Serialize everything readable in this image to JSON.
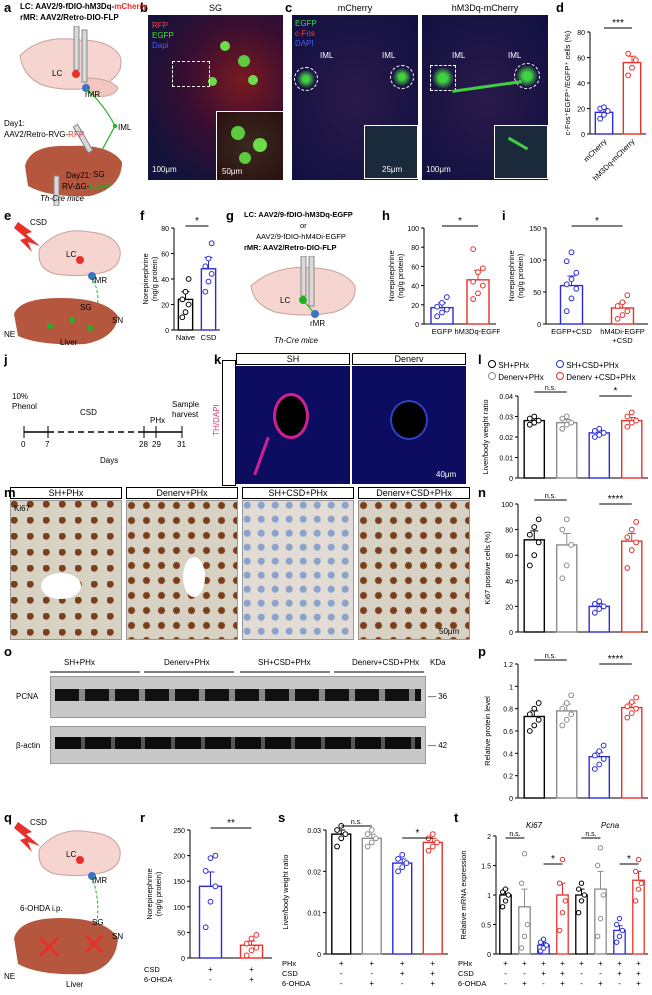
{
  "panel_letters": [
    "a",
    "b",
    "c",
    "d",
    "e",
    "f",
    "g",
    "h",
    "i",
    "j",
    "k",
    "l",
    "m",
    "n",
    "o",
    "p",
    "q",
    "r",
    "s",
    "t"
  ],
  "panel_a": {
    "line1_prefix": "LC: AAV2/9-fDIO-hM3Dq-",
    "line1_color": "mCherry",
    "line2": "rMR: AAV2/Retro-DIO-FLP",
    "day1": "Day1:",
    "day1_virus_prefix": "AAV2/Retro-RVG-",
    "day1_virus_color": "RFP",
    "day21": "Day21:",
    "day21_virus_prefix": "RV-ΔG-",
    "day21_virus_color": "EGFP",
    "lbl_lc": "LC",
    "lbl_rmr": "rMR",
    "lbl_iml": "IML",
    "lbl_sg": "SG",
    "mice": "Th-Cre mice"
  },
  "panel_b": {
    "title": "SG",
    "legend": [
      "RFP",
      "EGFP",
      "Dapi"
    ],
    "scale1": "100μm",
    "scale2": "50μm"
  },
  "panel_c": {
    "titles": [
      "mCherry",
      "hM3Dq-mCherry"
    ],
    "legend": [
      "EGFP",
      "c-Fos",
      "DAPI"
    ],
    "iml": "IML",
    "scale1": "25μm",
    "scale2": "100μm"
  },
  "panel_d": {
    "ylabel": "c-Fos⁺EGFP⁺/EGFP⁺ cells (%)",
    "sig": "***",
    "categories": [
      "mCherry",
      "hM3Dq-mCherry"
    ]
  },
  "panel_e": {
    "csd": "CSD",
    "lc": "LC",
    "rmr": "rMR",
    "sg": "SG",
    "sn": "SN",
    "ne": "NE",
    "liver": "Liver"
  },
  "panel_f": {
    "ylabel": "Norepinephrine\n(ng/g protein)",
    "sig": "*",
    "categories": [
      "Naive",
      "CSD"
    ]
  },
  "panel_g": {
    "line1": "LC: AAV2/9-fDIO-hM3Dq-EGFP",
    "line2": "or",
    "line3": "AAV2/9-fDIO-hM4Di-EGFP",
    "line4": "rMR: AAV2/Retro-DIO-FLP",
    "lc": "LC",
    "rmr": "rMR",
    "mice": "Th-Cre mice"
  },
  "panel_h": {
    "ylabel": "Norepinephrine\n(ng/g protein)",
    "sig": "*",
    "categories": [
      "EGFP",
      "hM3Dq-EGFP"
    ]
  },
  "panel_i": {
    "ylabel": "Norepinephrine\n(ng/g protein)",
    "sig": "*",
    "categories": [
      "EGFP+CSD",
      "hM4Di-EGFP\n+CSD"
    ]
  },
  "panel_j": {
    "phenol": "10%\nPhenol",
    "csd": "CSD",
    "phx": "PHx",
    "harvest": "Sample\nharvest",
    "days_label": "Days",
    "ticks": [
      "0",
      "7",
      "28",
      "29",
      "31"
    ]
  },
  "panel_k": {
    "titles": [
      "SH",
      "Denerv"
    ],
    "stain": "TH/DAPI",
    "scale": "40μm"
  },
  "panel_l": {
    "legend": [
      "SH+PHx",
      "Denerv+PHx",
      "SH+CSD+PHx",
      "Denerv +CSD+PHx"
    ],
    "ylabel": "Liver/body weight ratio",
    "ns": "n.s.",
    "sig": "*"
  },
  "panel_m": {
    "titles": [
      "SH+PHx",
      "Denerv+PHx",
      "SH+CSD+PHx",
      "Denerv+CSD+PHx"
    ],
    "stain": "Ki67",
    "scale": "50μm"
  },
  "panel_n": {
    "ylabel": "Ki67 positive cells (%)",
    "ns": "n.s.",
    "sig": "****"
  },
  "panel_o": {
    "groups": [
      "SH+PHx",
      "Denerv+PHx",
      "SH+CSD+PHx",
      "Denerv+CSD+PHx"
    ],
    "kda": "KDa",
    "rows": [
      "PCNA",
      "β-actin"
    ],
    "weights": [
      "36",
      "42"
    ]
  },
  "panel_p": {
    "ylabel": "Relative protein level",
    "ns": "n.s.",
    "sig": "****"
  },
  "panel_q": {
    "csd": "CSD",
    "lc": "LC",
    "rmr": "rMR",
    "treat": "6-OHDA i.p.",
    "sg": "SG",
    "sn": "SN",
    "ne": "NE",
    "liver": "Liver"
  },
  "panel_r": {
    "ylabel": "Norepinephrine\n(ng/g protein)",
    "sig": "**",
    "rows": [
      "CSD",
      "6-OHDA"
    ],
    "signs": [
      [
        "+",
        "+"
      ],
      [
        "-",
        "+"
      ]
    ]
  },
  "panel_s": {
    "ylabel": "Liver/body weight ratio",
    "ns": "n.s.",
    "sig": "*",
    "rows": [
      "PHx",
      "CSD",
      "6-OHDA"
    ],
    "signs": [
      [
        "+",
        "+",
        "+",
        "+"
      ],
      [
        "-",
        "-",
        "+",
        "+"
      ],
      [
        "-",
        "+",
        "-",
        "+"
      ]
    ]
  },
  "panel_t": {
    "ylabel": "Relative mRNA expression",
    "genes": [
      "Ki67",
      "Pcna"
    ],
    "ns": "n.s.",
    "sig": "*",
    "rows": [
      "PHx",
      "CSD",
      "6-OHDA"
    ],
    "signs": [
      [
        "+",
        "+",
        "+",
        "+"
      ],
      [
        "-",
        "-",
        "+",
        "+"
      ],
      [
        "-",
        "+",
        "-",
        "+"
      ]
    ]
  },
  "colors": {
    "black": "#000000",
    "gray": "#8c8c8c",
    "blue": "#2b2bdc",
    "red": "#e8302a",
    "mcherry": "#e8302a",
    "egfp": "#22b022"
  },
  "chart_data": [
    {
      "id": "d",
      "type": "bar",
      "categories": [
        "mCherry",
        "hM3Dq-mCherry"
      ],
      "values": [
        17,
        56
      ],
      "errors": [
        3,
        5
      ],
      "ylim": [
        0,
        80
      ],
      "yticks": [
        0,
        20,
        40,
        60,
        80
      ],
      "colors": [
        "blue",
        "red"
      ],
      "points": [
        [
          12,
          15,
          18,
          20,
          21
        ],
        [
          46,
          52,
          58,
          63
        ]
      ]
    },
    {
      "id": "f",
      "type": "bar",
      "categories": [
        "Naive",
        "CSD"
      ],
      "values": [
        24,
        48
      ],
      "errors": [
        6,
        9
      ],
      "ylim": [
        0,
        80
      ],
      "yticks": [
        0,
        20,
        40,
        60,
        80
      ],
      "colors": [
        "black",
        "blue"
      ],
      "points": [
        [
          10,
          14,
          20,
          24,
          30,
          40
        ],
        [
          30,
          38,
          44,
          50,
          56,
          68
        ]
      ]
    },
    {
      "id": "h",
      "type": "bar",
      "categories": [
        "EGFP",
        "hM3Dq-EGFP"
      ],
      "values": [
        17,
        46
      ],
      "errors": [
        5,
        10
      ],
      "ylim": [
        0,
        100
      ],
      "yticks": [
        0,
        20,
        40,
        60,
        80,
        100
      ],
      "colors": [
        "blue",
        "red"
      ],
      "points": [
        [
          8,
          12,
          15,
          18,
          22,
          28
        ],
        [
          26,
          32,
          40,
          44,
          54,
          58,
          78
        ]
      ]
    },
    {
      "id": "i",
      "type": "bar",
      "categories": [
        "EGFP+CSD",
        "hM4Di-EGFP\n+CSD"
      ],
      "values": [
        60,
        25
      ],
      "errors": [
        15,
        8
      ],
      "ylim": [
        0,
        150
      ],
      "yticks": [
        0,
        50,
        100,
        150
      ],
      "colors": [
        "blue",
        "red"
      ],
      "points": [
        [
          20,
          40,
          55,
          62,
          70,
          80,
          98,
          112
        ],
        [
          8,
          14,
          20,
          28,
          34,
          45
        ]
      ]
    },
    {
      "id": "l",
      "type": "bar",
      "categories": [
        "SH+PHx",
        "Denerv+PHx",
        "SH+CSD+PHx",
        "Denerv +CSD+PHx"
      ],
      "values": [
        0.028,
        0.027,
        0.022,
        0.028
      ],
      "errors": [
        0.001,
        0.0015,
        0.001,
        0.0015
      ],
      "ylim": [
        0,
        0.04
      ],
      "yticks": [
        0,
        0.01,
        0.02,
        0.03,
        0.04
      ],
      "colors": [
        "black",
        "gray",
        "blue",
        "red"
      ],
      "points": [
        [
          0.026,
          0.027,
          0.028,
          0.029,
          0.03
        ],
        [
          0.024,
          0.026,
          0.027,
          0.029,
          0.03
        ],
        [
          0.02,
          0.021,
          0.022,
          0.023,
          0.024
        ],
        [
          0.025,
          0.027,
          0.028,
          0.03,
          0.032
        ]
      ]
    },
    {
      "id": "n",
      "type": "bar",
      "categories": [
        "SH+PHx",
        "Denerv+PHx",
        "SH+CSD+PHx",
        "Denerv+CSD+PHx"
      ],
      "values": [
        72,
        68,
        20,
        71
      ],
      "errors": [
        7,
        9,
        2,
        6
      ],
      "ylim": [
        0,
        100
      ],
      "yticks": [
        0,
        20,
        40,
        60,
        80,
        100
      ],
      "colors": [
        "black",
        "gray",
        "blue",
        "red"
      ],
      "points": [
        [
          52,
          60,
          70,
          76,
          82,
          88
        ],
        [
          42,
          52,
          68,
          80,
          88
        ],
        [
          15,
          18,
          20,
          22,
          24
        ],
        [
          50,
          64,
          70,
          74,
          80,
          86
        ]
      ]
    },
    {
      "id": "p",
      "type": "bar",
      "categories": [
        "SH+PHx",
        "Denerv+PHx",
        "SH+CSD+PHx",
        "Denerv+CSD+PHx"
      ],
      "values": [
        0.73,
        0.78,
        0.37,
        0.81
      ],
      "errors": [
        0.05,
        0.06,
        0.04,
        0.04
      ],
      "ylim": [
        0,
        1.2
      ],
      "yticks": [
        0,
        0.2,
        0.4,
        0.6,
        0.8,
        1.0,
        1.2
      ],
      "colors": [
        "black",
        "gray",
        "blue",
        "red"
      ],
      "points": [
        [
          0.6,
          0.65,
          0.7,
          0.75,
          0.8,
          0.85
        ],
        [
          0.65,
          0.7,
          0.75,
          0.8,
          0.85,
          0.92
        ],
        [
          0.26,
          0.3,
          0.35,
          0.38,
          0.42,
          0.47
        ],
        [
          0.72,
          0.76,
          0.8,
          0.82,
          0.86,
          0.9
        ]
      ]
    },
    {
      "id": "r",
      "type": "bar",
      "categories": [
        "CSD",
        "CSD+6-OHDA"
      ],
      "values": [
        140,
        25
      ],
      "errors": [
        28,
        8
      ],
      "ylim": [
        0,
        250
      ],
      "yticks": [
        0,
        50,
        100,
        150,
        200,
        250
      ],
      "colors": [
        "blue",
        "red"
      ],
      "points": [
        [
          60,
          110,
          140,
          170,
          195,
          200
        ],
        [
          5,
          15,
          20,
          28,
          38,
          45
        ]
      ]
    },
    {
      "id": "s",
      "type": "bar",
      "categories": [
        "PHx",
        "PHx+6-OHDA",
        "PHx+CSD",
        "PHx+CSD+6-OHDA"
      ],
      "values": [
        0.029,
        0.028,
        0.022,
        0.027
      ],
      "errors": [
        0.001,
        0.001,
        0.001,
        0.001
      ],
      "ylim": [
        0,
        0.03
      ],
      "yticks": [
        0,
        0.01,
        0.02,
        0.03
      ],
      "colors": [
        "black",
        "gray",
        "blue",
        "red"
      ],
      "points": [
        [
          0.026,
          0.028,
          0.029,
          0.03,
          0.031
        ],
        [
          0.026,
          0.027,
          0.028,
          0.029,
          0.03
        ],
        [
          0.02,
          0.021,
          0.022,
          0.023,
          0.024
        ],
        [
          0.025,
          0.026,
          0.027,
          0.028,
          0.029
        ]
      ]
    },
    {
      "id": "t",
      "type": "bar",
      "groups": [
        "Ki67",
        "Pcna"
      ],
      "categories": [
        "PHx",
        "PHx+6-OHDA",
        "PHx+CSD",
        "PHx+CSD+6-OHDA"
      ],
      "values": [
        [
          1.0,
          0.8,
          0.15,
          1.0
        ],
        [
          1.0,
          1.1,
          0.4,
          1.25
        ]
      ],
      "errors": [
        [
          0.1,
          0.3,
          0.05,
          0.2
        ],
        [
          0.1,
          0.3,
          0.08,
          0.15
        ]
      ],
      "ylim": [
        0,
        2.0
      ],
      "yticks": [
        0,
        0.5,
        1.0,
        1.5,
        2.0
      ],
      "colors": [
        "black",
        "gray",
        "blue",
        "red"
      ],
      "points": [
        [
          [
            0.8,
            0.9,
            1.0,
            1.05,
            1.1
          ],
          [
            0.1,
            0.3,
            0.5,
            1.2,
            1.7
          ],
          [
            0.05,
            0.1,
            0.15,
            0.2,
            0.25
          ],
          [
            0.4,
            0.7,
            0.9,
            1.2,
            1.6
          ]
        ],
        [
          [
            0.7,
            0.9,
            1.0,
            1.1,
            1.2
          ],
          [
            0.3,
            0.6,
            1.0,
            1.5,
            1.8
          ],
          [
            0.2,
            0.3,
            0.4,
            0.5,
            0.6
          ],
          [
            0.9,
            1.1,
            1.2,
            1.4,
            1.6
          ]
        ]
      ]
    }
  ]
}
